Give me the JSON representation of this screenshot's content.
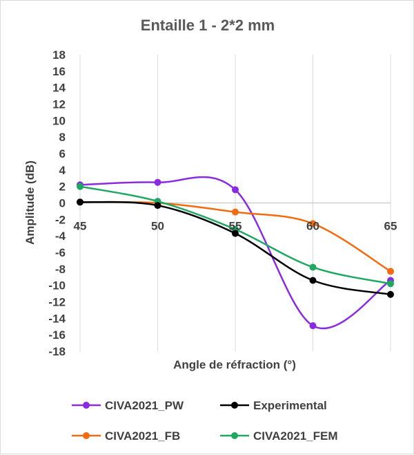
{
  "chart_data": {
    "type": "line",
    "title": "Entaille 1 - 2*2 mm",
    "xlabel": "Angle de réfraction (°)",
    "ylabel": "Amplitude (dB)",
    "x": [
      45,
      50,
      55,
      60,
      65
    ],
    "x_tick_labels": [
      "45",
      "50",
      "55",
      "60",
      "65"
    ],
    "ylim": [
      -18,
      18
    ],
    "y_ticks": [
      18,
      16,
      14,
      12,
      10,
      8,
      6,
      4,
      2,
      0,
      -2,
      -4,
      -6,
      -8,
      -10,
      -12,
      -14,
      -16,
      -18
    ],
    "y_tick_labels": [
      "18",
      "16",
      "14",
      "12",
      "10",
      "8",
      "6",
      "4",
      "2",
      "0",
      "-2",
      "-4",
      "-6",
      "-8",
      "-10",
      "-12",
      "-14",
      "-16",
      "-18"
    ],
    "grid": "vertical gridlines at category positions",
    "smoothed": true,
    "legend_position": "bottom",
    "series": [
      {
        "name": "CIVA2021_PW",
        "color": "#8a2be2",
        "values": [
          2.2,
          2.5,
          1.6,
          -14.9,
          -9.4
        ]
      },
      {
        "name": "Experimental",
        "color": "#000000",
        "values": [
          0.1,
          -0.3,
          -3.7,
          -9.4,
          -11.1
        ]
      },
      {
        "name": "CIVA2021_FB",
        "color": "#f26b10",
        "values": [
          0.1,
          0.0,
          -1.1,
          -2.5,
          -8.3
        ]
      },
      {
        "name": "CIVA2021_FEM",
        "color": "#1ea862",
        "values": [
          2.0,
          0.2,
          -3.2,
          -7.8,
          -9.8
        ]
      }
    ]
  }
}
